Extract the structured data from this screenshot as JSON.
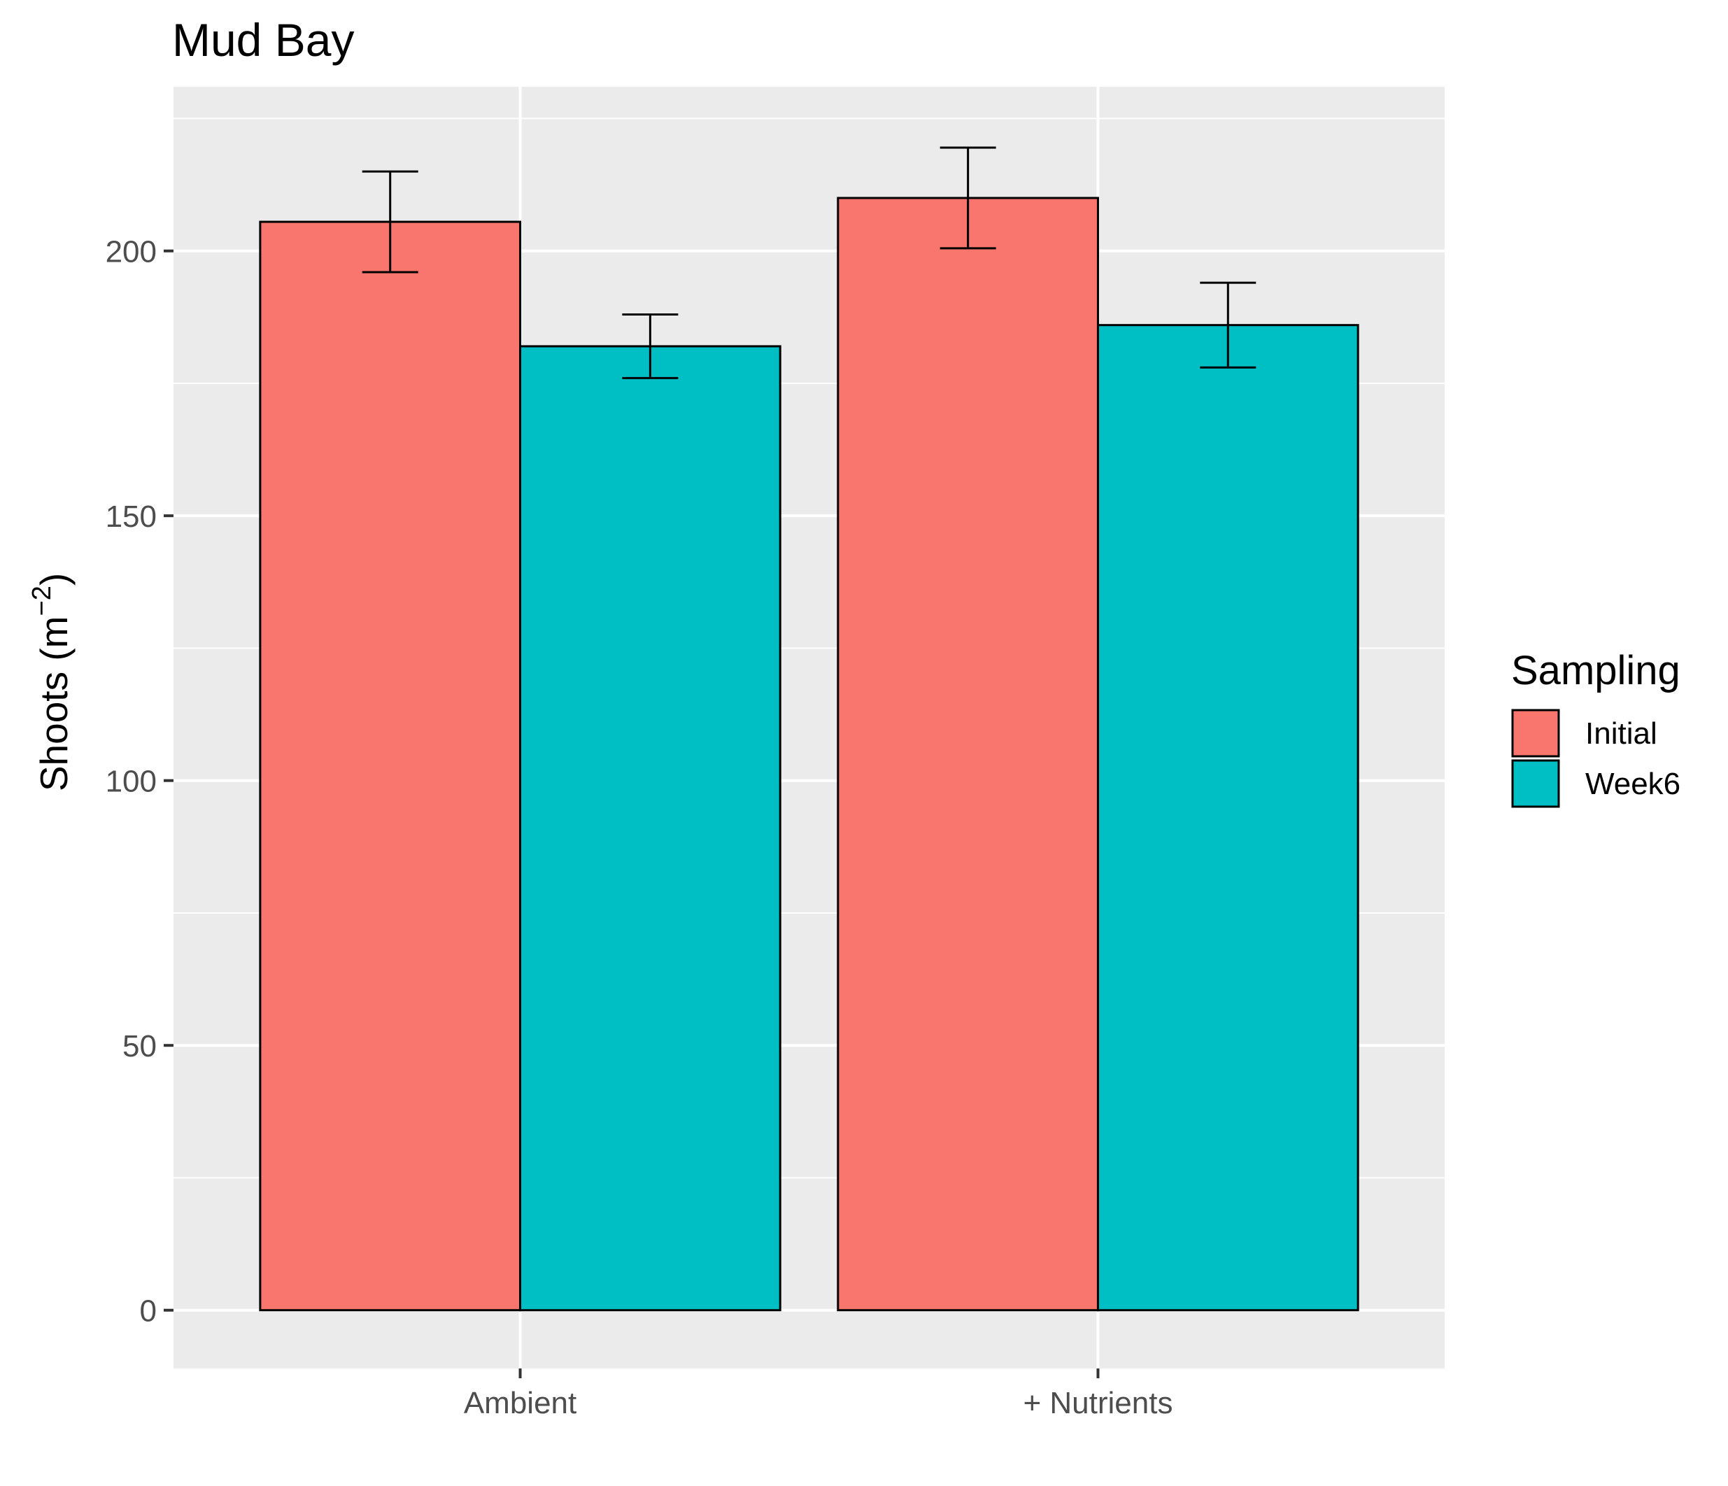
{
  "chart_data": {
    "type": "bar",
    "title": "Mud Bay",
    "xlabel": "",
    "ylabel": "Shoots (m",
    "ylabel_superscript": "−2",
    "ylabel_close": ")",
    "categories": [
      "Ambient",
      "+ Nutrients"
    ],
    "series": [
      {
        "name": "Initial",
        "color": "#F8766D",
        "values": [
          205.5,
          210
        ],
        "error_low": [
          196,
          200.5
        ],
        "error_high": [
          215,
          219.5
        ]
      },
      {
        "name": "Week6",
        "color": "#00BFC4",
        "values": [
          182,
          186
        ],
        "error_low": [
          176,
          178
        ],
        "error_high": [
          188,
          194
        ]
      }
    ],
    "ylim": [
      -11,
      231
    ],
    "yticks": [
      0,
      50,
      100,
      150,
      200
    ],
    "grid": true,
    "panel_color": "#EBEBEB",
    "legend": {
      "title": "Sampling",
      "placement": "right"
    }
  }
}
